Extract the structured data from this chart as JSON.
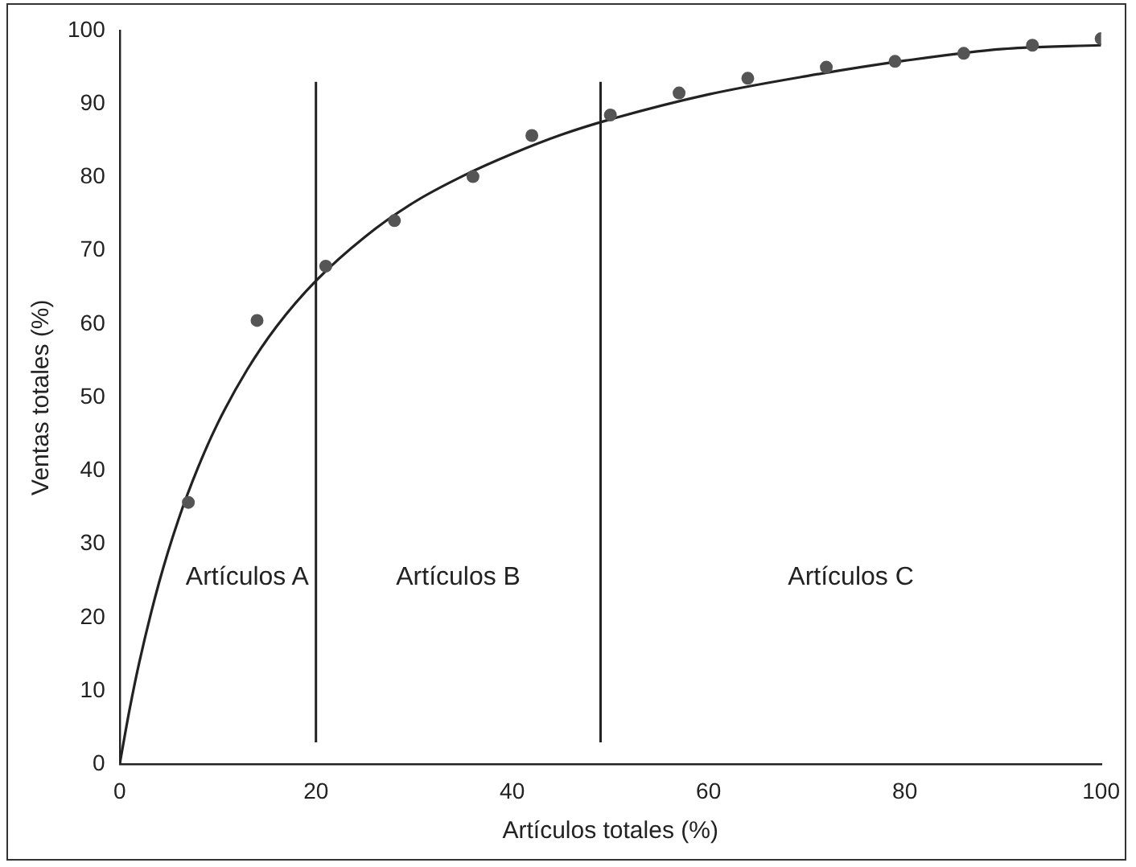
{
  "chart_data": {
    "type": "scatter",
    "xlabel": "Artículos totales (%)",
    "ylabel": "Ventas totales (%)",
    "xlim": [
      0,
      100
    ],
    "ylim": [
      0,
      100
    ],
    "xticks": [
      0,
      20,
      40,
      60,
      80,
      100
    ],
    "yticks": [
      0,
      10,
      20,
      30,
      40,
      50,
      60,
      70,
      80,
      90,
      100
    ],
    "grid": false,
    "legend": false,
    "marker": "circle",
    "series": [
      {
        "color": "#555555",
        "x": [
          7,
          14,
          21,
          28,
          36,
          42,
          50,
          57,
          64,
          72,
          79,
          86,
          93,
          100
        ],
        "values": [
          35.7,
          60.5,
          67.9,
          74.1,
          80.1,
          85.7,
          88.5,
          91.5,
          93.5,
          95,
          95.8,
          96.9,
          98,
          98.9
        ]
      },
      {
        "type": "line",
        "color": "#222222",
        "marker": "none",
        "x": [
          0,
          1,
          2,
          4,
          6,
          8,
          10,
          13,
          16,
          20,
          25,
          30,
          35,
          40,
          45,
          50,
          60,
          70,
          80,
          90,
          100
        ],
        "values": [
          0,
          7.4,
          13.9,
          24.7,
          33.4,
          40.5,
          46.5,
          53.8,
          59.7,
          65.9,
          71.9,
          76.6,
          80.2,
          83.2,
          85.8,
          87.9,
          91.3,
          93.8,
          95.9,
          97.5,
          98
        ]
      }
    ],
    "ref_lines": [
      {
        "axis": "x",
        "value": 20,
        "color": "#222222"
      },
      {
        "axis": "x",
        "value": 49,
        "color": "#222222"
      }
    ],
    "annotations": [
      "Artículos A",
      "Artículos B",
      "Artículos C"
    ]
  }
}
